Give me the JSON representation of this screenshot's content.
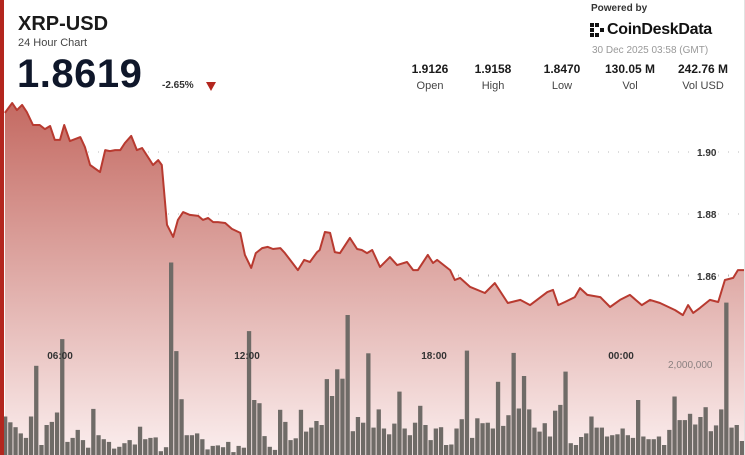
{
  "header": {
    "symbol": "XRP-USD",
    "subtitle": "24 Hour Chart",
    "price": "1.8619",
    "change": "-2.65%",
    "change_direction": "down"
  },
  "stats": [
    {
      "value": "1.9126",
      "label": "Open"
    },
    {
      "value": "1.9158",
      "label": "High"
    },
    {
      "value": "1.8470",
      "label": "Low"
    },
    {
      "value": "130.05 M",
      "label": "Vol"
    },
    {
      "value": "242.76 M",
      "label": "Vol USD"
    }
  ],
  "branding": {
    "powered_by": "Powered by",
    "logo_text": "CoinDeskData",
    "timestamp": "30 Dec 2025 03:58 (GMT)"
  },
  "colors": {
    "accent": "#b3261e",
    "line": "#b83a30",
    "area_top": "#c46a62",
    "area_bottom": "#fbeeee",
    "volume_bar": "#6f6b67"
  },
  "chart_data": {
    "type": "line",
    "title": "",
    "grid": true,
    "price_axis": {
      "ticks": [
        "1.90",
        "1.88",
        "1.86"
      ],
      "tick_values": [
        1.9,
        1.88,
        1.86
      ],
      "position": "right"
    },
    "time_axis": {
      "ticks": [
        "06:00",
        "12:00",
        "18:00",
        "00:00"
      ]
    },
    "volume_axis": {
      "ticks": [
        "2,000,000"
      ],
      "tick_values": [
        2000000
      ]
    },
    "price_series": {
      "x": [
        "04:14",
        "04:28",
        "04:37",
        "04:47",
        "04:56",
        "05:08",
        "05:21",
        "05:31",
        "05:41",
        "05:50",
        "06:00",
        "06:08",
        "06:19",
        "06:39",
        "06:48",
        "06:58",
        "07:17",
        "07:27",
        "07:36",
        "07:46",
        "07:56",
        "08:05",
        "08:17",
        "08:28",
        "08:38",
        "08:53",
        "08:59",
        "09:09",
        "09:16",
        "09:26",
        "09:38",
        "09:47",
        "09:57",
        "10:10",
        "10:26",
        "10:35",
        "10:45",
        "10:55",
        "11:04",
        "11:18",
        "11:31",
        "11:47",
        "11:56",
        "12:08",
        "12:17",
        "12:29",
        "12:40",
        "12:50",
        "13:04",
        "13:13",
        "13:23",
        "13:38",
        "13:50",
        "14:01",
        "14:15",
        "14:20",
        "14:30",
        "14:40",
        "14:49",
        "14:59",
        "15:18",
        "15:32",
        "15:41",
        "15:51",
        "16:01",
        "16:16",
        "16:35",
        "16:49",
        "17:08",
        "17:20",
        "17:29",
        "17:48",
        "17:58",
        "18:06",
        "18:31",
        "18:40",
        "18:50",
        "19:09",
        "19:38",
        "19:57",
        "20:22",
        "20:46",
        "21:05",
        "21:18",
        "21:38",
        "21:49",
        "21:59",
        "22:12",
        "22:31",
        "22:41",
        "22:55",
        "23:20",
        "23:39",
        "23:58",
        "00:17",
        "00:40",
        "00:56",
        "01:15",
        "01:44",
        "01:59",
        "02:09",
        "02:19",
        "02:32",
        "02:51",
        "03:07",
        "03:20",
        "03:36",
        "03:45",
        "03:58"
      ],
      "y": [
        1.9126,
        1.9158,
        1.9135,
        1.9152,
        1.9129,
        1.9087,
        1.9087,
        1.9074,
        1.9084,
        1.9039,
        1.9039,
        1.9087,
        1.9035,
        1.9048,
        1.9016,
        1.8958,
        1.8935,
        1.9006,
        1.9003,
        1.9006,
        1.9006,
        1.9029,
        1.9052,
        1.9006,
        1.9013,
        1.8974,
        1.8958,
        1.8974,
        1.8958,
        1.8765,
        1.8726,
        1.8781,
        1.8806,
        1.8797,
        1.8794,
        1.8781,
        1.8787,
        1.8774,
        1.8774,
        1.8771,
        1.8752,
        1.8739,
        1.8668,
        1.8626,
        1.8674,
        1.869,
        1.8694,
        1.8687,
        1.869,
        1.8674,
        1.8652,
        1.8619,
        1.8652,
        1.8645,
        1.8677,
        1.8684,
        1.8742,
        1.8739,
        1.8677,
        1.8674,
        1.8723,
        1.8687,
        1.8684,
        1.8674,
        1.8684,
        1.8629,
        1.8661,
        1.8635,
        1.8645,
        1.8619,
        1.8619,
        1.8668,
        1.8642,
        1.8652,
        1.8619,
        1.8587,
        1.8594,
        1.8565,
        1.8545,
        1.8577,
        1.8513,
        1.8523,
        1.8506,
        1.8523,
        1.8548,
        1.8555,
        1.8506,
        1.8516,
        1.8532,
        1.8561,
        1.8539,
        1.8532,
        1.85,
        1.8523,
        1.8539,
        1.8506,
        1.8523,
        1.8513,
        1.849,
        1.8474,
        1.8506,
        1.8481,
        1.8497,
        1.8523,
        1.8516,
        1.8587,
        1.8594,
        1.8619,
        1.8619
      ]
    },
    "volume_series": {
      "type": "bar",
      "unit": "millions",
      "values": [
        0.82,
        0.69,
        0.58,
        0.44,
        0.34,
        0.82,
        1.96,
        0.18,
        0.63,
        0.7,
        0.91,
        2.56,
        0.25,
        0.34,
        0.52,
        0.29,
        0.12,
        0.99,
        0.4,
        0.31,
        0.25,
        0.1,
        0.14,
        0.22,
        0.29,
        0.19,
        0.59,
        0.31,
        0.34,
        0.35,
        0.04,
        0.13,
        4.28,
        2.29,
        1.21,
        0.4,
        0.4,
        0.44,
        0.31,
        0.08,
        0.16,
        0.17,
        0.13,
        0.25,
        0.02,
        0.16,
        0.12,
        2.74,
        1.19,
        1.12,
        0.38,
        0.14,
        0.07,
        0.97,
        0.7,
        0.29,
        0.33,
        0.97,
        0.48,
        0.57,
        0.72,
        0.63,
        1.66,
        1.28,
        1.88,
        1.67,
        3.1,
        0.49,
        0.81,
        0.68,
        2.24,
        0.57,
        0.98,
        0.55,
        0.42,
        0.66,
        1.38,
        0.55,
        0.4,
        0.68,
        1.06,
        0.63,
        0.29,
        0.55,
        0.58,
        0.18,
        0.19,
        0.55,
        0.76,
        2.3,
        0.34,
        0.78,
        0.67,
        0.68,
        0.55,
        1.6,
        0.61,
        0.85,
        2.25,
        1.0,
        1.73,
        0.98,
        0.57,
        0.48,
        0.67,
        0.37,
        0.95,
        1.08,
        1.83,
        0.22,
        0.18,
        0.36,
        0.44,
        0.82,
        0.57,
        0.57,
        0.37,
        0.4,
        0.42,
        0.55,
        0.4,
        0.34,
        1.19,
        0.37,
        0.31,
        0.31,
        0.37,
        0.18,
        0.52,
        1.27,
        0.74,
        0.74,
        0.88,
        0.64,
        0.81,
        1.03,
        0.49,
        0.62,
        0.98,
        3.38,
        0.57,
        0.63,
        0.27
      ]
    }
  }
}
